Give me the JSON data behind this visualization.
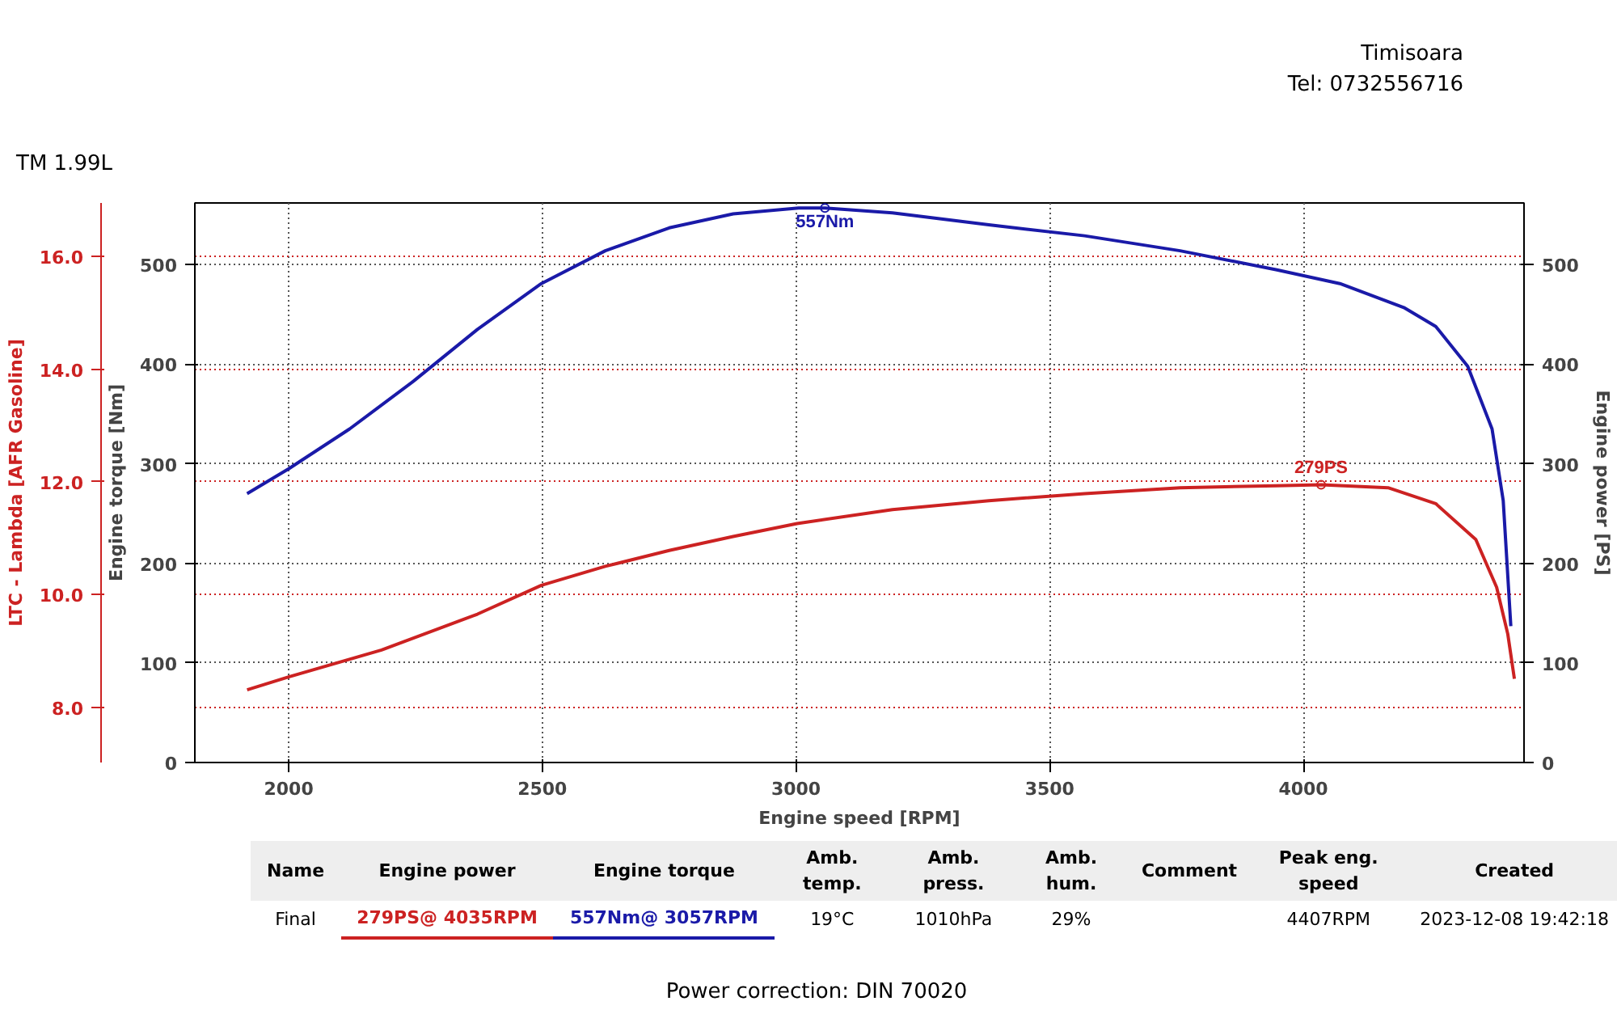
{
  "chart_data": {
    "type": "line",
    "title": "TM 1.99L",
    "xlabel": "Engine speed [RPM]",
    "ylabel": "Engine torque [Nm]",
    "y2label": "Engine power [PS]",
    "y3label": "LTC - Lambda [AFR Gasoline]",
    "xlim": [
      1815,
      4435
    ],
    "xticks": [
      2000,
      2500,
      3000,
      3500,
      4000
    ],
    "ylim": [
      0,
      562
    ],
    "yticks": [
      0,
      100,
      200,
      300,
      400,
      500
    ],
    "y2lim": [
      0,
      562
    ],
    "y2ticks": [
      0,
      100,
      200,
      300,
      400,
      500
    ],
    "y3lim": [
      7.02,
      16.95
    ],
    "y3ticks": [
      {
        "value": 8,
        "label": "8.0"
      },
      {
        "value": 10,
        "label": "10.0"
      },
      {
        "value": 12,
        "label": "12.0"
      },
      {
        "value": 14,
        "label": "14.0"
      },
      {
        "value": 16,
        "label": "16.0"
      }
    ],
    "grid": true,
    "marker": "none",
    "line_style": "solid",
    "series": [
      {
        "color": "#1a1aa8",
        "x": [
          1918,
          2000,
          2120,
          2246,
          2372,
          2498,
          2624,
          2750,
          2876,
          3005,
          3057,
          3190,
          3380,
          3569,
          3757,
          3946,
          4072,
          4198,
          4261,
          4324,
          4372,
          4394,
          4409
        ],
        "values": [
          270,
          295,
          335,
          383,
          435,
          481,
          514,
          537,
          551,
          557,
          557,
          552,
          540,
          529,
          514,
          495,
          481,
          457,
          438,
          398,
          335,
          263,
          137
        ]
      },
      {
        "color": "#cc2222",
        "axis": "y2",
        "x": [
          1918,
          2000,
          2183,
          2372,
          2498,
          2624,
          2750,
          2876,
          3002,
          3190,
          3380,
          3569,
          3757,
          3946,
          4035,
          4167,
          4261,
          4340,
          4381,
          4403,
          4416
        ],
        "values": [
          73,
          86,
          113,
          149,
          178,
          197,
          213,
          227,
          240,
          254,
          263,
          270,
          276,
          278,
          279,
          276,
          260,
          224,
          176,
          129,
          84
        ]
      }
    ],
    "annotations": [
      {
        "text": "557Nm",
        "x": 3057,
        "y": 557
      },
      {
        "text": "279PS",
        "x": 4035,
        "y": 279
      },
      "Timisoara",
      "Tel: 0732556716",
      "Name",
      "Engine power",
      "Engine torque",
      "Amb. temp.",
      "Amb. press.",
      "Amb. hum.",
      "Comment",
      "Peak eng. speed",
      "Created",
      "Final",
      "279PS@ 4035RPM",
      "557Nm@ 3057RPM",
      "19°C",
      "1010hPa",
      "29%",
      "4407RPM",
      "2023-12-08 19:42:18",
      "Power correction: DIN 70020"
    ]
  }
}
